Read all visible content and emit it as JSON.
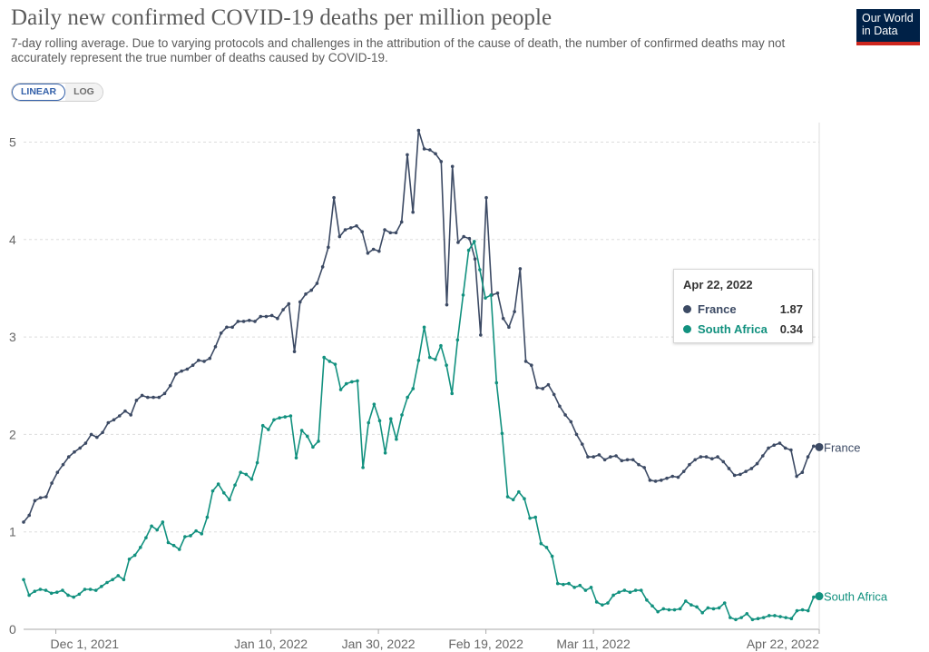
{
  "header": {
    "title": "Daily new confirmed COVID-19 deaths per million people",
    "subtitle": "7-day rolling average. Due to varying protocols and challenges in the attribution of the cause of death, the number of confirmed deaths may not accurately represent the true number of deaths caused by COVID-19.",
    "logo_line1": "Our World",
    "logo_line2": "in Data"
  },
  "controls": {
    "linear_label": "LINEAR",
    "log_label": "LOG",
    "selected": "LINEAR"
  },
  "tooltip": {
    "date": "Apr 22, 2022",
    "rows": [
      {
        "name": "France",
        "value": "1.87",
        "color": "#3c4a64"
      },
      {
        "name": "South Africa",
        "value": "0.34",
        "color": "#12917f"
      }
    ]
  },
  "colors": {
    "france": "#3c4a64",
    "south_africa": "#12917f",
    "grid": "#dddddd",
    "text": "#5b5b5b"
  },
  "chart_data": {
    "type": "line",
    "title": "Daily new confirmed COVID-19 deaths per million people",
    "xlabel": "",
    "ylabel": "",
    "x_start": "2021-11-25",
    "x_end": "2022-04-22",
    "ylim": [
      0,
      5.2
    ],
    "yticks": [
      0,
      1,
      2,
      3,
      4,
      5
    ],
    "xticks": [
      {
        "label": "Dec 1, 2021",
        "date": "2021-12-01"
      },
      {
        "label": "Jan 10, 2022",
        "date": "2022-01-10"
      },
      {
        "label": "Jan 30, 2022",
        "date": "2022-01-30"
      },
      {
        "label": "Feb 19, 2022",
        "date": "2022-02-19"
      },
      {
        "label": "Mar 11, 2022",
        "date": "2022-03-11"
      },
      {
        "label": "Apr 22, 2022",
        "date": "2022-04-22"
      }
    ],
    "grid": true,
    "legend": "line-end labels",
    "series": [
      {
        "name": "France",
        "color": "#3c4a64",
        "values": [
          1.1,
          1.17,
          1.32,
          1.35,
          1.36,
          1.5,
          1.61,
          1.69,
          1.77,
          1.82,
          1.86,
          1.91,
          2.0,
          1.97,
          2.02,
          2.12,
          2.15,
          2.19,
          2.24,
          2.2,
          2.35,
          2.4,
          2.38,
          2.38,
          2.38,
          2.42,
          2.5,
          2.62,
          2.65,
          2.67,
          2.71,
          2.76,
          2.75,
          2.78,
          2.9,
          3.04,
          3.1,
          3.1,
          3.16,
          3.16,
          3.17,
          3.16,
          3.21,
          3.21,
          3.22,
          3.19,
          3.28,
          3.34,
          2.85,
          3.36,
          3.44,
          3.48,
          3.55,
          3.72,
          3.92,
          4.43,
          4.03,
          4.1,
          4.12,
          4.14,
          4.08,
          3.86,
          3.9,
          3.88,
          4.1,
          4.07,
          4.07,
          4.18,
          4.87,
          4.28,
          5.12,
          4.93,
          4.92,
          4.88,
          4.8,
          3.33,
          4.75,
          3.97,
          4.03,
          4.01,
          3.8,
          3.02,
          4.43,
          3.43,
          3.45,
          3.19,
          3.1,
          3.26,
          3.7,
          2.75,
          2.71,
          2.48,
          2.47,
          2.51,
          2.41,
          2.29,
          2.2,
          2.13,
          2.0,
          1.9,
          1.77,
          1.77,
          1.79,
          1.74,
          1.77,
          1.78,
          1.73,
          1.74,
          1.74,
          1.69,
          1.66,
          1.53,
          1.52,
          1.53,
          1.55,
          1.57,
          1.56,
          1.62,
          1.69,
          1.74,
          1.77,
          1.77,
          1.75,
          1.77,
          1.72,
          1.65,
          1.58,
          1.59,
          1.62,
          1.65,
          1.7,
          1.78,
          1.86,
          1.89,
          1.91,
          1.86,
          1.84,
          1.57,
          1.61,
          1.77,
          1.88,
          1.87
        ]
      },
      {
        "name": "South Africa",
        "color": "#12917f",
        "values": [
          0.51,
          0.35,
          0.39,
          0.41,
          0.4,
          0.37,
          0.38,
          0.4,
          0.35,
          0.33,
          0.36,
          0.41,
          0.41,
          0.4,
          0.44,
          0.48,
          0.51,
          0.55,
          0.51,
          0.72,
          0.76,
          0.84,
          0.94,
          1.06,
          1.02,
          1.1,
          0.89,
          0.86,
          0.82,
          0.95,
          0.96,
          1.01,
          0.98,
          1.15,
          1.42,
          1.49,
          1.4,
          1.33,
          1.48,
          1.61,
          1.59,
          1.54,
          1.71,
          2.09,
          2.05,
          2.15,
          2.17,
          2.18,
          2.19,
          1.76,
          2.04,
          1.98,
          1.87,
          1.93,
          2.79,
          2.75,
          2.72,
          2.46,
          2.52,
          2.54,
          2.55,
          1.66,
          2.12,
          2.31,
          2.14,
          1.81,
          2.16,
          1.95,
          2.2,
          2.38,
          2.47,
          2.76,
          3.1,
          2.79,
          2.77,
          2.91,
          2.71,
          2.42,
          2.97,
          3.43,
          3.89,
          3.98,
          3.69,
          3.4,
          3.43,
          2.53,
          2.01,
          1.36,
          1.33,
          1.41,
          1.34,
          1.14,
          1.15,
          0.88,
          0.84,
          0.75,
          0.47,
          0.46,
          0.47,
          0.43,
          0.45,
          0.4,
          0.43,
          0.28,
          0.25,
          0.27,
          0.35,
          0.38,
          0.4,
          0.38,
          0.4,
          0.4,
          0.3,
          0.24,
          0.18,
          0.21,
          0.2,
          0.2,
          0.21,
          0.29,
          0.25,
          0.23,
          0.17,
          0.22,
          0.21,
          0.22,
          0.27,
          0.12,
          0.1,
          0.12,
          0.16,
          0.1,
          0.11,
          0.12,
          0.14,
          0.14,
          0.13,
          0.12,
          0.11,
          0.19,
          0.2,
          0.19,
          0.33,
          0.34
        ]
      }
    ]
  }
}
